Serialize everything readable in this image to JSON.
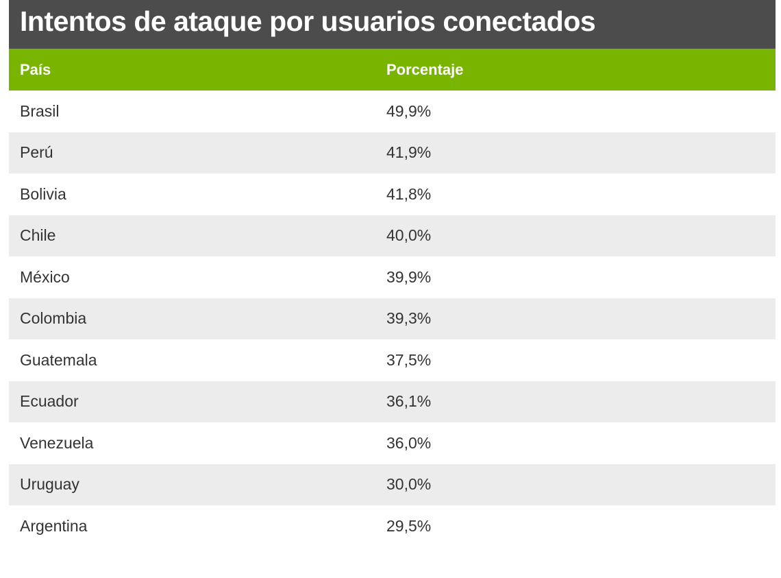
{
  "chart_data": {
    "type": "table",
    "title": "Intentos de ataque por usuarios conectados",
    "columns": [
      "País",
      "Porcentaje"
    ],
    "rows": [
      {
        "country": "Brasil",
        "pct_label": "49,9%",
        "value": 49.9
      },
      {
        "country": "Perú",
        "pct_label": "41,9%",
        "value": 41.9
      },
      {
        "country": "Bolivia",
        "pct_label": "41,8%",
        "value": 41.8
      },
      {
        "country": "Chile",
        "pct_label": "40,0%",
        "value": 40.0
      },
      {
        "country": "México",
        "pct_label": "39,9%",
        "value": 39.9
      },
      {
        "country": "Colombia",
        "pct_label": "39,3%",
        "value": 39.3
      },
      {
        "country": "Guatemala",
        "pct_label": "37,5%",
        "value": 37.5
      },
      {
        "country": "Ecuador",
        "pct_label": "36,1%",
        "value": 36.1
      },
      {
        "country": "Venezuela",
        "pct_label": "36,0%",
        "value": 36.0
      },
      {
        "country": "Uruguay",
        "pct_label": "30,0%",
        "value": 30.0
      },
      {
        "country": "Argentina",
        "pct_label": "29,5%",
        "value": 29.5
      }
    ]
  },
  "colors": {
    "title_bg": "#4c4c4c",
    "header_bg": "#78b400",
    "row_alt_bg": "#ececec",
    "text": "#333333"
  }
}
